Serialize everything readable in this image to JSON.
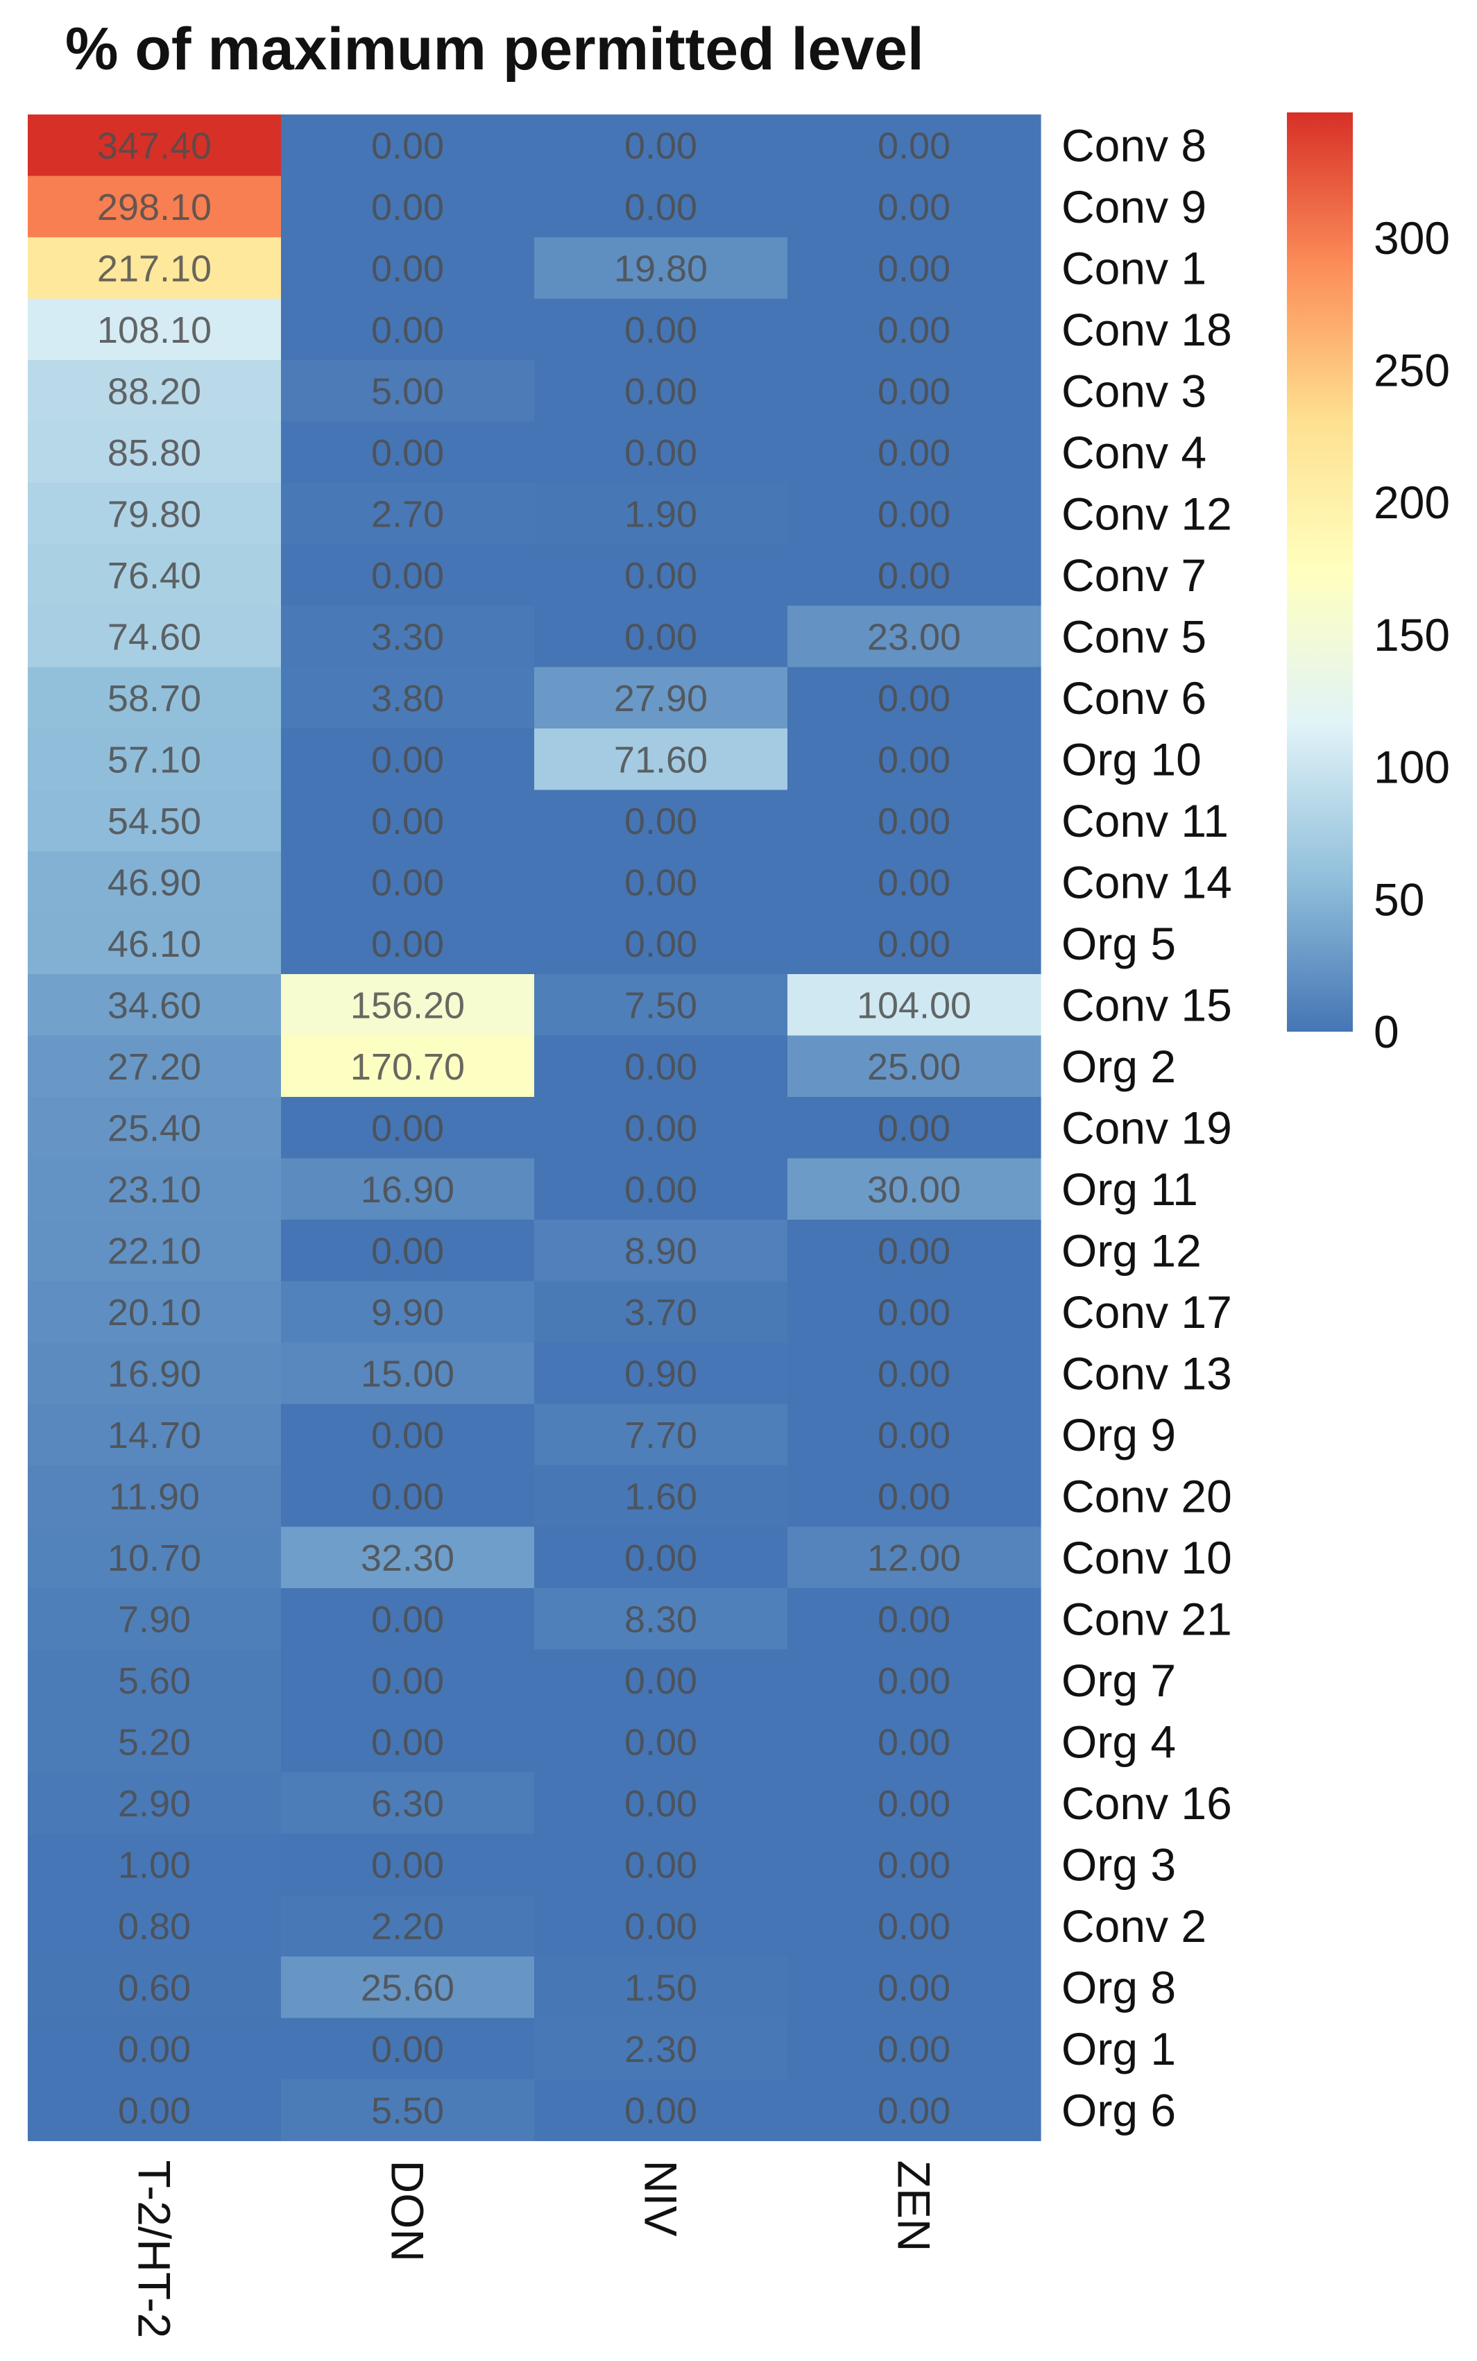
{
  "chart_data": {
    "type": "heatmap",
    "title": "% of maximum permitted level",
    "columns": [
      "T-2/HT-2",
      "DON",
      "NIV",
      "ZEN"
    ],
    "rows": [
      "Conv 8",
      "Conv 9",
      "Conv 1",
      "Conv 18",
      "Conv 3",
      "Conv 4",
      "Conv 12",
      "Conv 7",
      "Conv 5",
      "Conv 6",
      "Org 10",
      "Conv 11",
      "Conv 14",
      "Org 5",
      "Conv 15",
      "Org 2",
      "Conv 19",
      "Org 11",
      "Org 12",
      "Conv 17",
      "Conv 13",
      "Org 9",
      "Conv 20",
      "Conv 10",
      "Conv 21",
      "Org 7",
      "Org 4",
      "Conv 16",
      "Org 3",
      "Conv 2",
      "Org 8",
      "Org 1",
      "Org 6"
    ],
    "values": [
      [
        347.4,
        0.0,
        0.0,
        0.0
      ],
      [
        298.1,
        0.0,
        0.0,
        0.0
      ],
      [
        217.1,
        0.0,
        19.8,
        0.0
      ],
      [
        108.1,
        0.0,
        0.0,
        0.0
      ],
      [
        88.2,
        5.0,
        0.0,
        0.0
      ],
      [
        85.8,
        0.0,
        0.0,
        0.0
      ],
      [
        79.8,
        2.7,
        1.9,
        0.0
      ],
      [
        76.4,
        0.0,
        0.0,
        0.0
      ],
      [
        74.6,
        3.3,
        0.0,
        23.0
      ],
      [
        58.7,
        3.8,
        27.9,
        0.0
      ],
      [
        57.1,
        0.0,
        71.6,
        0.0
      ],
      [
        54.5,
        0.0,
        0.0,
        0.0
      ],
      [
        46.9,
        0.0,
        0.0,
        0.0
      ],
      [
        46.1,
        0.0,
        0.0,
        0.0
      ],
      [
        34.6,
        156.2,
        7.5,
        104.0
      ],
      [
        27.2,
        170.7,
        0.0,
        25.0
      ],
      [
        25.4,
        0.0,
        0.0,
        0.0
      ],
      [
        23.1,
        16.9,
        0.0,
        30.0
      ],
      [
        22.1,
        0.0,
        8.9,
        0.0
      ],
      [
        20.1,
        9.9,
        3.7,
        0.0
      ],
      [
        16.9,
        15.0,
        0.9,
        0.0
      ],
      [
        14.7,
        0.0,
        7.7,
        0.0
      ],
      [
        11.9,
        0.0,
        1.6,
        0.0
      ],
      [
        10.7,
        32.3,
        0.0,
        12.0
      ],
      [
        7.9,
        0.0,
        8.3,
        0.0
      ],
      [
        5.6,
        0.0,
        0.0,
        0.0
      ],
      [
        5.2,
        0.0,
        0.0,
        0.0
      ],
      [
        2.9,
        6.3,
        0.0,
        0.0
      ],
      [
        1.0,
        0.0,
        0.0,
        0.0
      ],
      [
        0.8,
        2.2,
        0.0,
        0.0
      ],
      [
        0.6,
        25.6,
        1.5,
        0.0
      ],
      [
        0.0,
        0.0,
        2.3,
        0.0
      ],
      [
        0.0,
        5.5,
        0.0,
        0.0
      ]
    ],
    "colorbar": {
      "range": [
        0,
        347.4
      ],
      "ticks": [
        0,
        50,
        100,
        150,
        200,
        250,
        300
      ],
      "tick_labels": [
        "0",
        "50",
        "100",
        "150",
        "200",
        "250",
        "300"
      ],
      "placement": "right",
      "colors": [
        "#4575b4",
        "#91bfdb",
        "#e0f3f8",
        "#ffffbf",
        "#fee090",
        "#fc8d59",
        "#d73027"
      ]
    }
  }
}
